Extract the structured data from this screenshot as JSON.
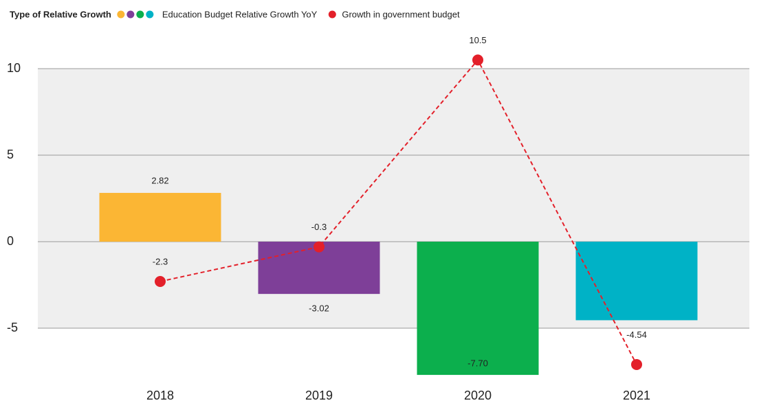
{
  "chart_data": {
    "type": "bar",
    "legend_title": "Type of Relative Growth",
    "categories": [
      "2018",
      "2019",
      "2020",
      "2021"
    ],
    "series": [
      {
        "name": "Education Budget Relative Growth YoY",
        "type": "bar",
        "color": [
          "#fbb634",
          "#7e3f98",
          "#0caf4d",
          "#00b2c6"
        ],
        "values": [
          2.82,
          -3.02,
          -7.7,
          -4.54
        ],
        "value_labels": [
          "2.82",
          "-3.02",
          "-7.70",
          "-4.54"
        ]
      },
      {
        "name": "Growth in government budget",
        "type": "line",
        "color": "#e3202a",
        "values": [
          -2.3,
          -0.3,
          10.5,
          -7.1
        ],
        "value_labels": [
          "-2.3",
          "-0.3",
          "10.5",
          null
        ]
      }
    ],
    "ylim": [
      -9.3,
      12
    ],
    "yticks": [
      10,
      5,
      0,
      -5
    ],
    "grid": true
  }
}
